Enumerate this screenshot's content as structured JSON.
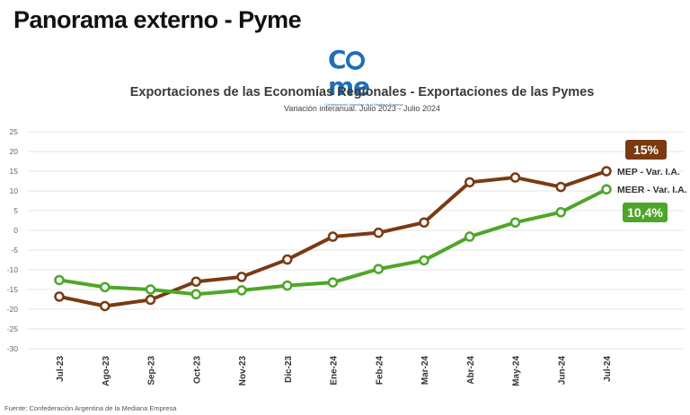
{
  "page": {
    "title": "Panorama externo - Pyme"
  },
  "logo": {
    "word_rest": "me",
    "subtitle": "Confederación Argentina de la Mediana Empresa"
  },
  "footer": {
    "source": "Fuente: Confederación Argentina de la Mediana Empresa"
  },
  "chart_data": {
    "type": "line",
    "title": "Exportaciones de las Economías Regionales - Exportaciones de las Pymes",
    "subtitle": "Variación interanual. Julio 2023 - Julio 2024",
    "xlabel": "",
    "ylabel": "",
    "ylim": [
      -30,
      25
    ],
    "yticks": [
      25,
      20,
      15,
      10,
      5,
      0,
      -5,
      -10,
      -15,
      -20,
      -25,
      -30
    ],
    "grid": true,
    "categories": [
      "Jul-23",
      "Ago-23",
      "Sep-23",
      "Oct-23",
      "Nov-23",
      "Dic-23",
      "Ene-24",
      "Feb-24",
      "Mar-24",
      "Abr-24",
      "May-24",
      "Jun-24",
      "Jul-24"
    ],
    "series": [
      {
        "name": "MEP - Var. I.A.",
        "color": "#7a3a12",
        "values": [
          -16.8,
          -19.2,
          -17.6,
          -13.0,
          -11.8,
          -7.4,
          -1.6,
          -0.6,
          2.0,
          12.2,
          13.4,
          11.0,
          15.0
        ],
        "badge": "15%"
      },
      {
        "name": "MEER - Var. I.A.",
        "color": "#4ea628",
        "values": [
          -12.6,
          -14.4,
          -15.0,
          -16.2,
          -15.2,
          -14.0,
          -13.2,
          -9.8,
          -7.6,
          -1.6,
          2.0,
          4.6,
          10.4
        ],
        "badge": "10,4%"
      }
    ]
  }
}
